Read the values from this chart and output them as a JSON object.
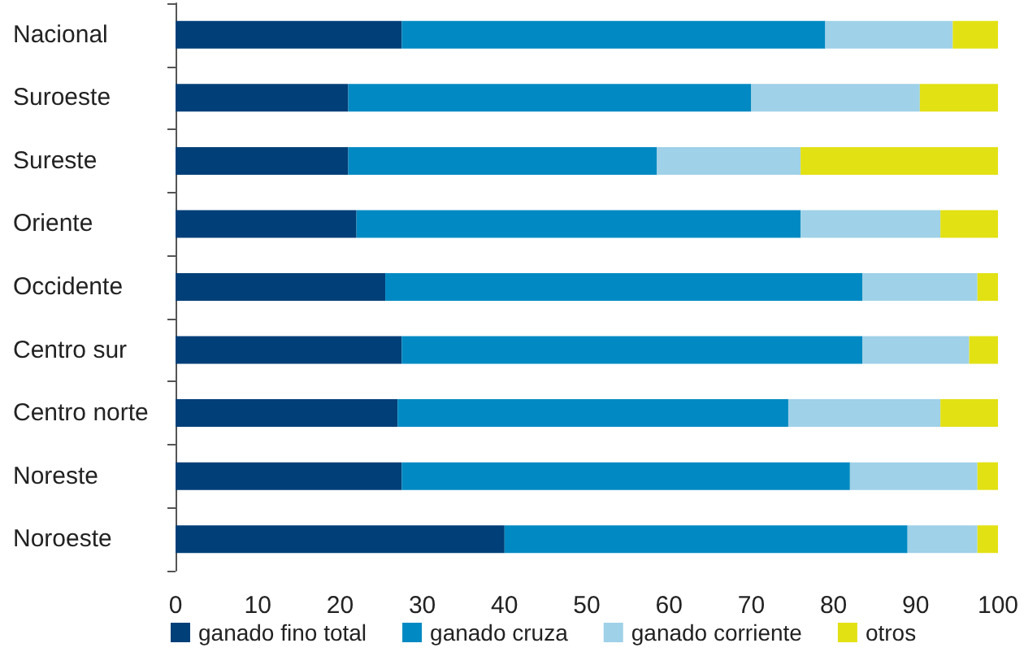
{
  "chart_data": {
    "type": "bar",
    "orientation": "horizontal",
    "stacked": true,
    "categories": [
      "Nacional",
      "Suroeste",
      "Sureste",
      "Oriente",
      "Occidente",
      "Centro sur",
      "Centro norte",
      "Noreste",
      "Noroeste"
    ],
    "series": [
      {
        "name": "ganado fino total",
        "color": "#003f78",
        "values": [
          27.5,
          21,
          21,
          22,
          25.5,
          27.5,
          27,
          27.5,
          40
        ]
      },
      {
        "name": "ganado cruza",
        "color": "#0089c2",
        "values": [
          51.5,
          49,
          37.5,
          54,
          58,
          56,
          47.5,
          54.5,
          49
        ]
      },
      {
        "name": "ganado corriente",
        "color": "#9fd1e8",
        "values": [
          15.5,
          20.5,
          17.5,
          17,
          14,
          13,
          18.5,
          15.5,
          8.5
        ]
      },
      {
        "name": "otros",
        "color": "#e2e114",
        "values": [
          5.5,
          9.5,
          24,
          7,
          2.5,
          3.5,
          7,
          2.5,
          2.5
        ]
      }
    ],
    "xlim": [
      0,
      100
    ],
    "xticks": [
      0,
      10,
      20,
      30,
      40,
      50,
      60,
      70,
      80,
      90,
      100
    ],
    "grid": false,
    "legend": "bottom"
  }
}
